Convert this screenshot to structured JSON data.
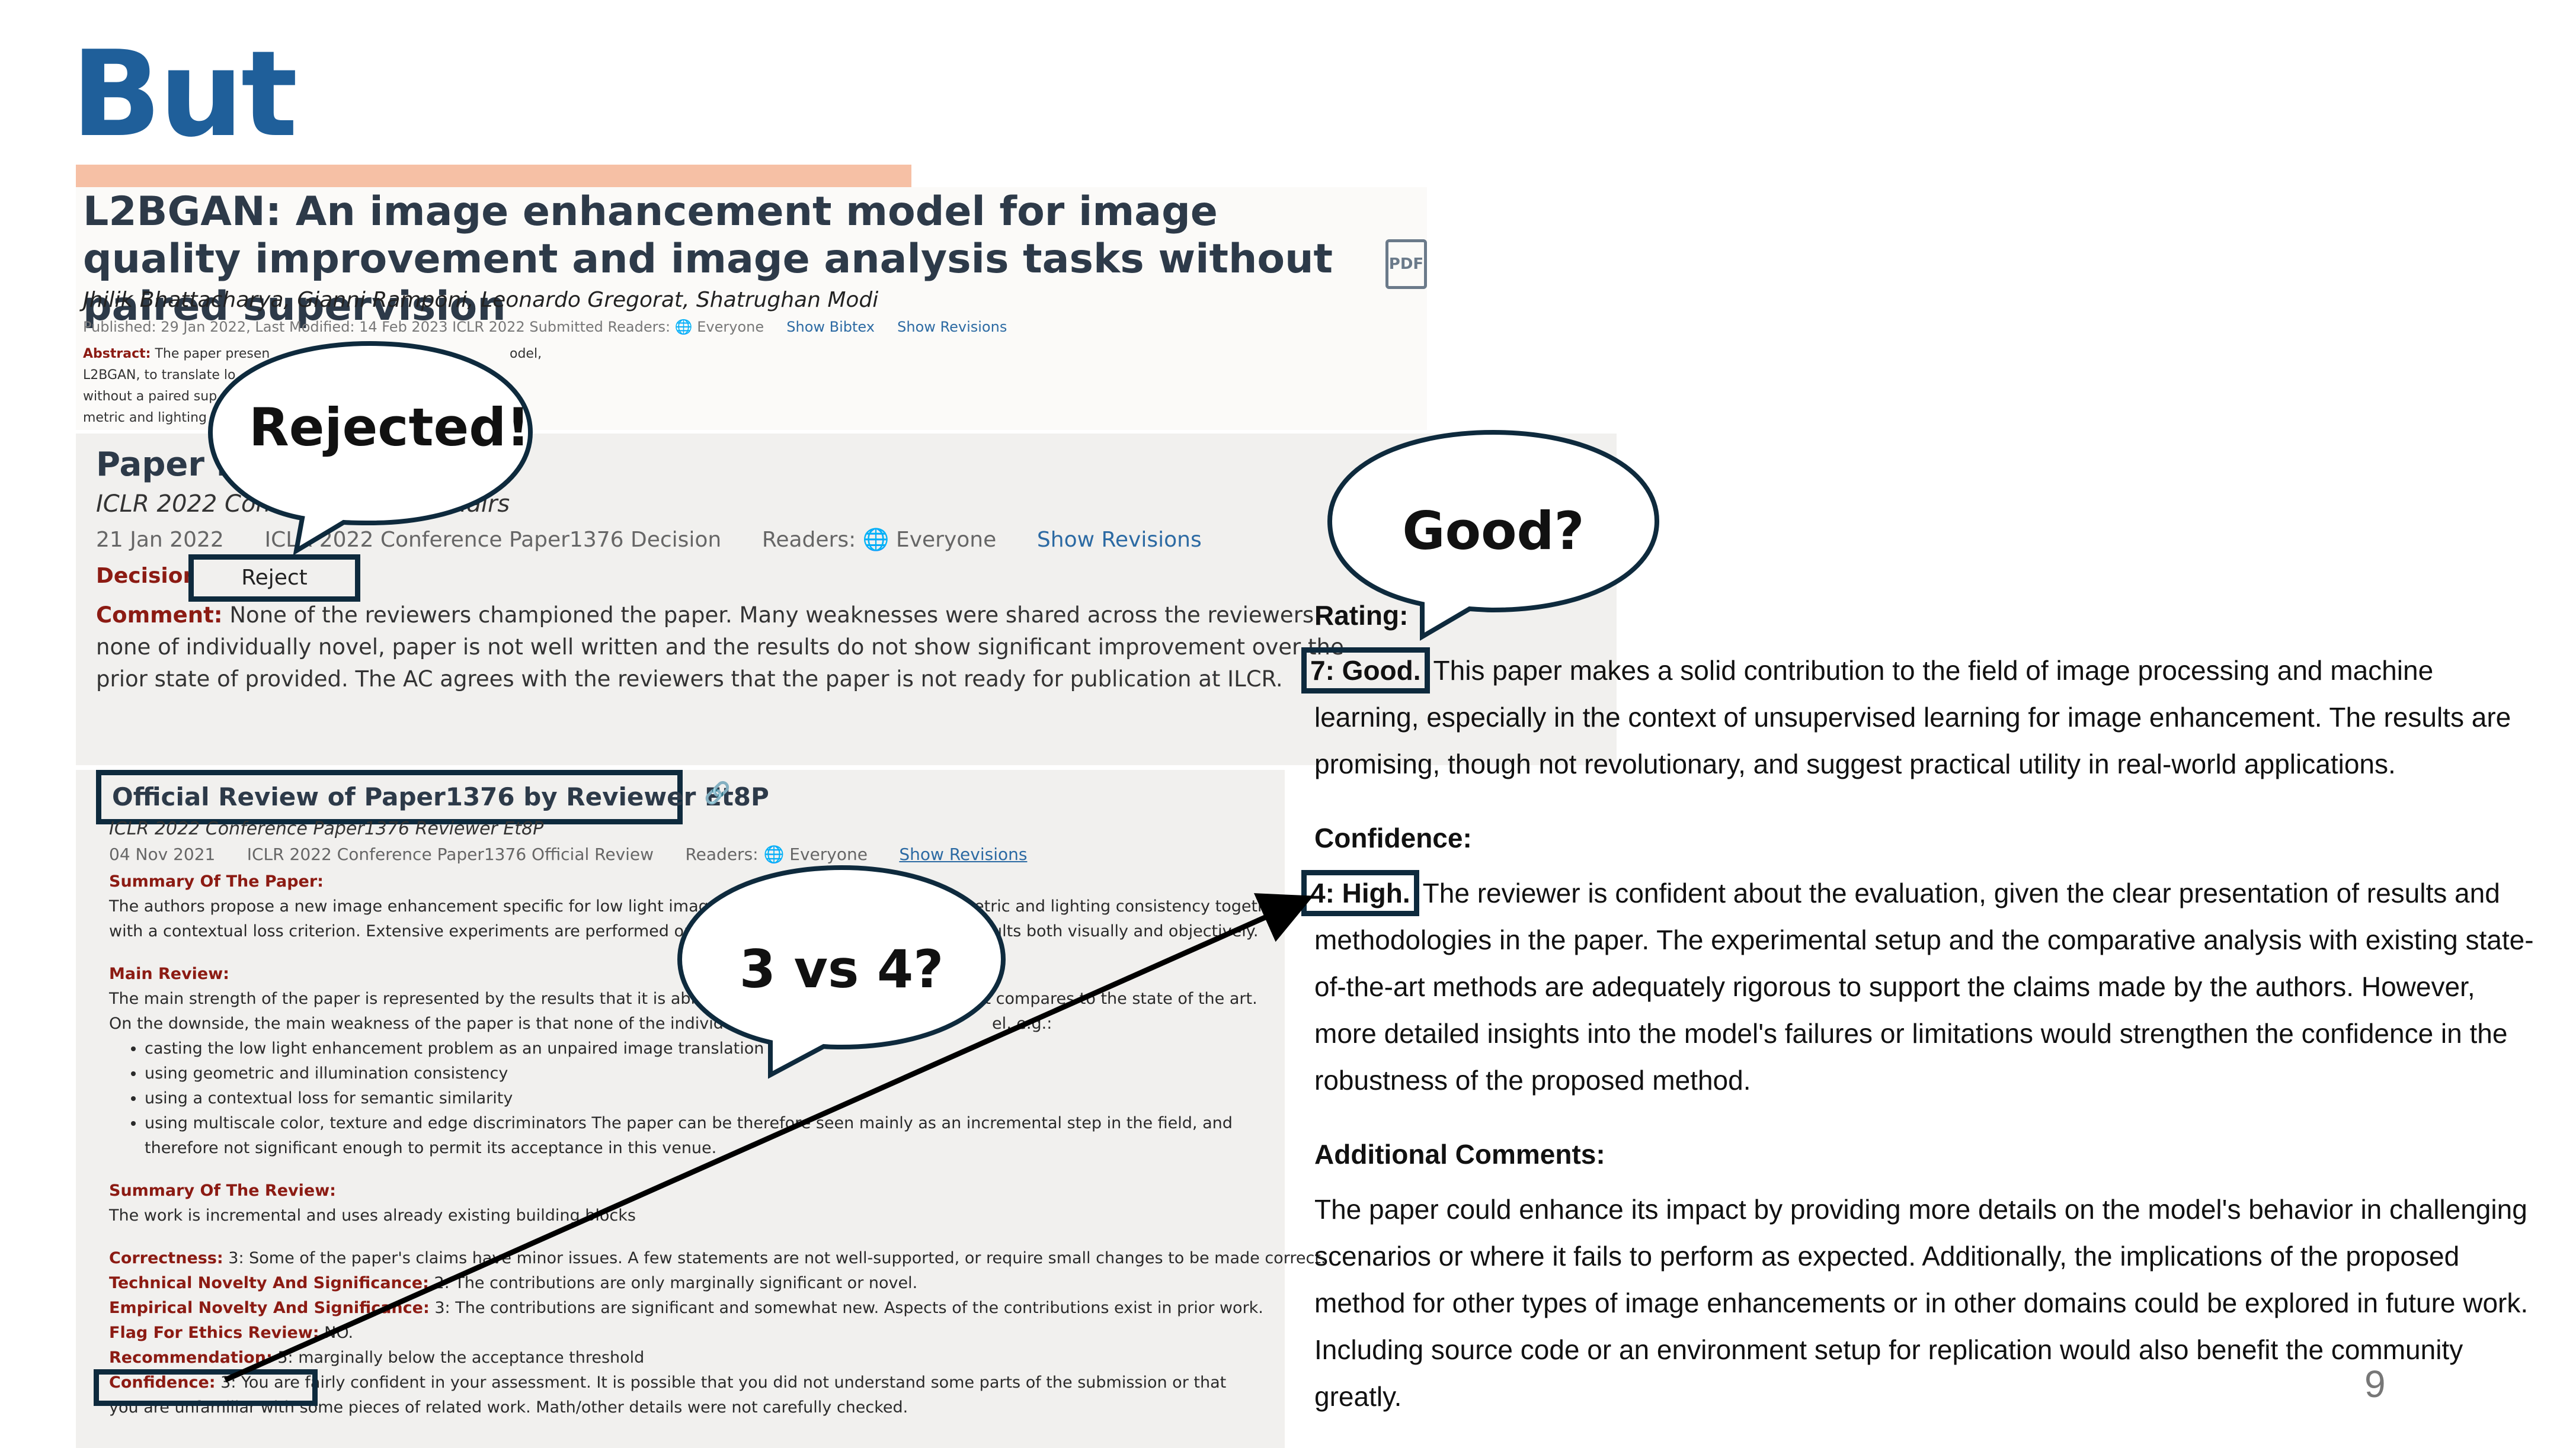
{
  "slide": {
    "title": "But",
    "accent_color": "#f6c0a5",
    "title_color": "#1f5f9a",
    "page_number": "9"
  },
  "paper": {
    "title": "L2BGAN: An image enhancement model for image quality improvement and image analysis tasks without paired supervision",
    "pdf_icon_label": "PDF",
    "authors": "Jhilik Bhattacharya, Gianni Ramponi, Leonardo Gregorat, Shatrughan Modi",
    "meta": "Published: 29 Jan 2022, Last Modified: 14 Feb 2023    ICLR 2022 Submitted    Readers:",
    "readers": "Everyone",
    "show_bibtex": "Show Bibtex",
    "show_revisions": "Show Revisions",
    "abstract_label": "Abstract:",
    "abstract_lines": [
      "The paper presen",
      "L2BGAN, to translate lo",
      "without a paired sup",
      "metric and lighting"
    ],
    "abstract_tail": "odel,"
  },
  "decision": {
    "heading": "Paper D",
    "subtitle": "ICLR 2022 Conf",
    "subtitle_tail": "hairs",
    "date": "21 Jan 2022",
    "venue": "ICLR 2022 Conference Paper1376 Decision",
    "readers_label": "Readers:",
    "readers": "Everyone",
    "show_revisions": "Show Revisions",
    "label": "Decision",
    "value": "Reject",
    "comment_label": "Comment:",
    "comment": "None of the reviewers championed the paper. Many weaknesses were shared across the reviewers: none of individually novel, paper is not well written and the results do not show significant improvement over the prior state of provided. The AC agrees with the reviewers that the paper is not ready for publication at ILCR."
  },
  "review": {
    "heading": "Official Review of Paper1376 by Reviewer Et8P",
    "subtitle": "ICLR 2022 Conference Paper1376 Reviewer Et8P",
    "date": "04 Nov 2021",
    "venue": "ICLR 2022 Conference Paper1376 Official Review",
    "readers_label": "Readers:",
    "readers": "Everyone",
    "show_revisions": "Show Revisions",
    "summary_paper_label": "Summary Of The Paper:",
    "summary_paper": "The authors propose a new image enhancement specific for low light images",
    "summary_paper_tail": "etric and lighting consistency together",
    "summary_paper_2": "with a contextual loss criterion. Extensive experiments are performed on b",
    "summary_paper_2_tail": "ults both visually and objectively.",
    "main_review_label": "Main Review:",
    "main_review_1": "The main strength of the paper is represented by the results that it is able to",
    "main_review_1_tail": "it compares to the state of the art.",
    "main_review_2": "On the downside, the main weakness of the paper is that none of the individua",
    "main_review_2_tail": "el, e.g.:",
    "bullets": [
      "casting the low light enhancement problem as an unpaired image translation pro",
      "using geometric and illumination consistency",
      "using a contextual loss for semantic similarity",
      "using multiscale color, texture and edge discriminators The paper can be therefore seen mainly as an incremental step in the field, and therefore not significant enough to permit its acceptance in this venue."
    ],
    "summary_review_label": "Summary Of The Review:",
    "summary_review": "The work is incremental and uses already existing building blocks",
    "correctness_label": "Correctness:",
    "correctness": "3: Some of the paper's claims have minor issues. A few statements are not well-supported, or require small changes to be made correct.",
    "tech_novelty_label": "Technical Novelty And Significance:",
    "tech_novelty": "2: The contributions are only marginally significant or novel.",
    "emp_novelty_label": "Empirical Novelty And Significance:",
    "emp_novelty": "3: The contributions are significant and somewhat new. Aspects of the contributions exist in prior work.",
    "ethics_label": "Flag For Ethics Review:",
    "ethics": "NO.",
    "recommendation_label": "Recommendation:",
    "recommendation": "5: marginally below the acceptance threshold",
    "confidence_label": "Confidence:",
    "confidence": "3: You are fairly confident in your assessment. It is possible that you did not understand some parts of the submission or that you are unfamiliar with some pieces of related work. Math/other details were not carefully checked."
  },
  "llm_review": {
    "rating_label": "Rating:",
    "rating_value": "7: Good.",
    "rating_text": "This paper makes a solid contribution to the field of image processing and machine learning, especially in the context of unsupervised learning for image enhancement. The results are promising, though not revolutionary, and suggest practical utility in real-world applications.",
    "confidence_label": "Confidence:",
    "confidence_value": "4: High.",
    "confidence_text": "The reviewer is confident about the evaluation, given the clear presentation of results and methodologies in the paper. The experimental setup and the comparative analysis with existing state-of-the-art methods are adequately rigorous to support the claims made by the authors. However, more detailed insights into the model's failures or limitations would strengthen the confidence in the robustness of the proposed method.",
    "additional_label": "Additional Comments:",
    "additional_text": "The paper could enhance its impact by providing more details on the model's behavior in challenging scenarios or where it fails to perform as expected. Additionally, the implications of the proposed method for other types of image enhancements or in other domains could be explored in future work. Including source code or an environment setup for replication would also benefit the community greatly."
  },
  "bubbles": {
    "rejected": "Rejected!",
    "good": "Good?",
    "three_vs_four": "3 vs 4?"
  }
}
